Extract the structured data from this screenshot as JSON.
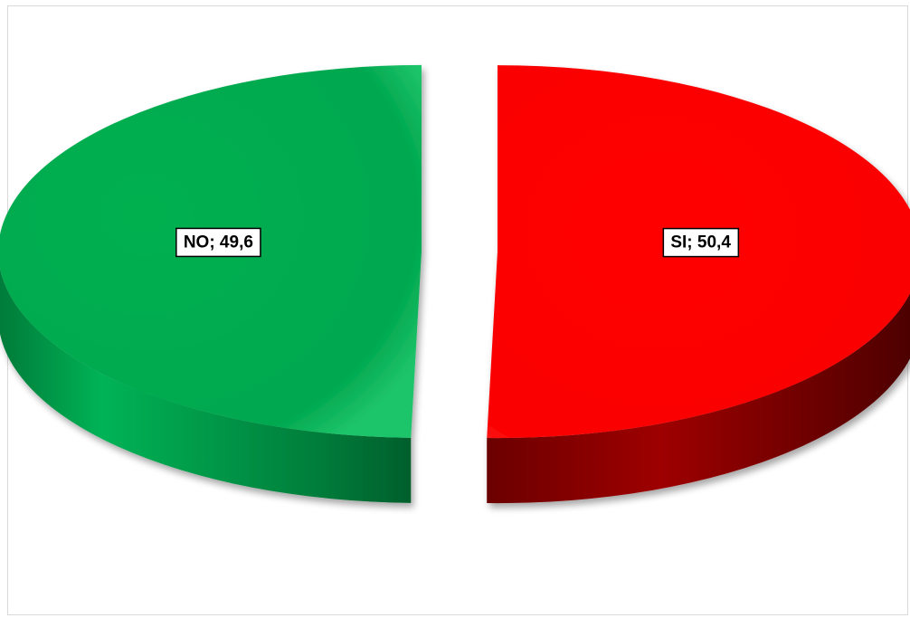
{
  "chart_data": {
    "type": "pie",
    "style": "3d-exploded",
    "slices": [
      {
        "label": "NO",
        "value": 49.6,
        "data_label": "NO; 49,6",
        "color": "#00a84f",
        "dark_color": "#005f2c"
      },
      {
        "label": "SI",
        "value": 50.4,
        "data_label": "SI; 50,4",
        "color": "#ff0000",
        "dark_color": "#6b0000"
      }
    ],
    "legend": "none",
    "grid": false
  }
}
